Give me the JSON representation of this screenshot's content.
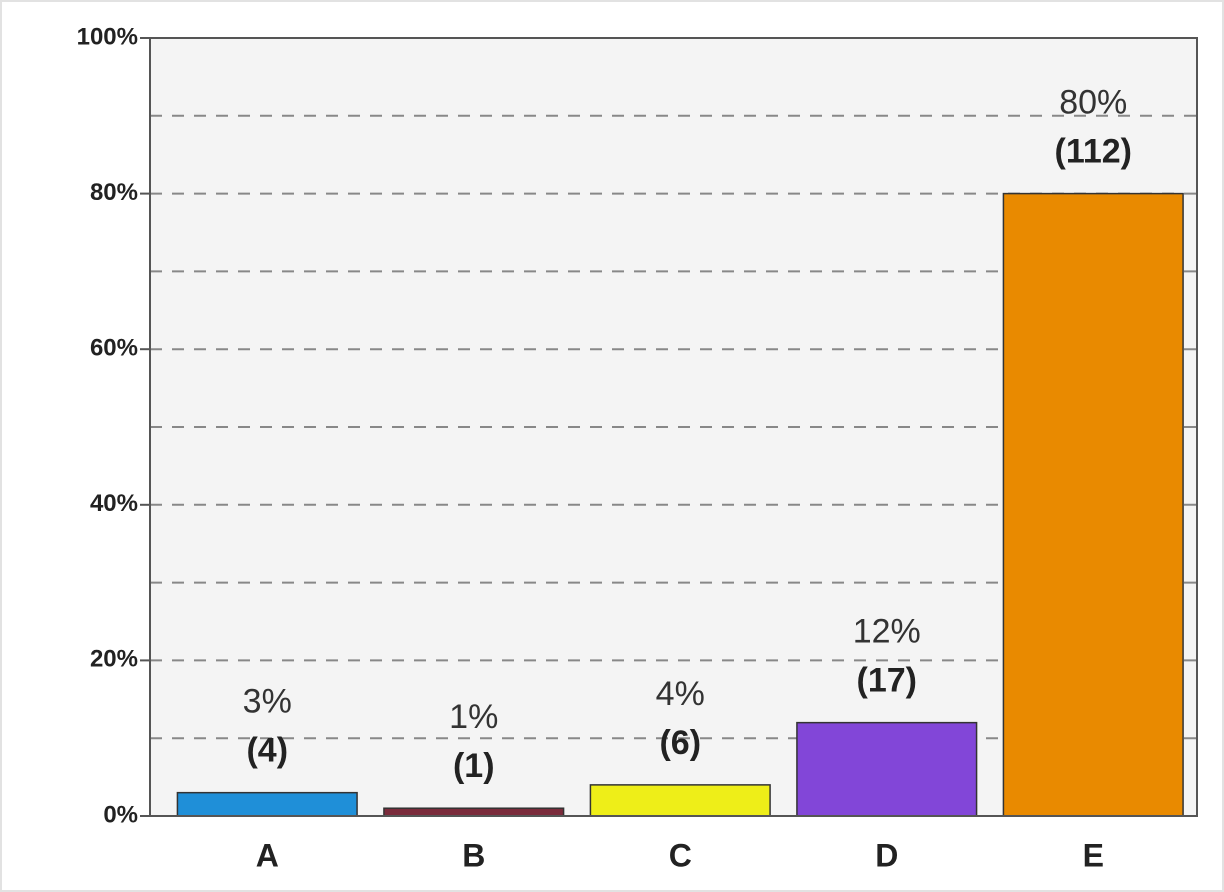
{
  "chart_data": {
    "type": "bar",
    "categories": [
      "A",
      "B",
      "C",
      "D",
      "E"
    ],
    "values": [
      3,
      1,
      4,
      12,
      80
    ],
    "value_labels": [
      "3%",
      "1%",
      "4%",
      "12%",
      "80%"
    ],
    "count_labels": [
      "(4)",
      "(1)",
      "(6)",
      "(17)",
      "(112)"
    ],
    "colors": [
      "#1f8fd8",
      "#7a2b3b",
      "#eeee18",
      "#8246d8",
      "#e98a00"
    ],
    "ylim": [
      0,
      100
    ],
    "yticks": [
      {
        "value": 0,
        "label": "0%"
      },
      {
        "value": 20,
        "label": "20%"
      },
      {
        "value": 40,
        "label": "40%"
      },
      {
        "value": 60,
        "label": "60%"
      },
      {
        "value": 80,
        "label": "80%"
      },
      {
        "value": 100,
        "label": "100%"
      }
    ],
    "minor_yticks": [
      10,
      30,
      50,
      70,
      90
    ],
    "grid": true
  }
}
